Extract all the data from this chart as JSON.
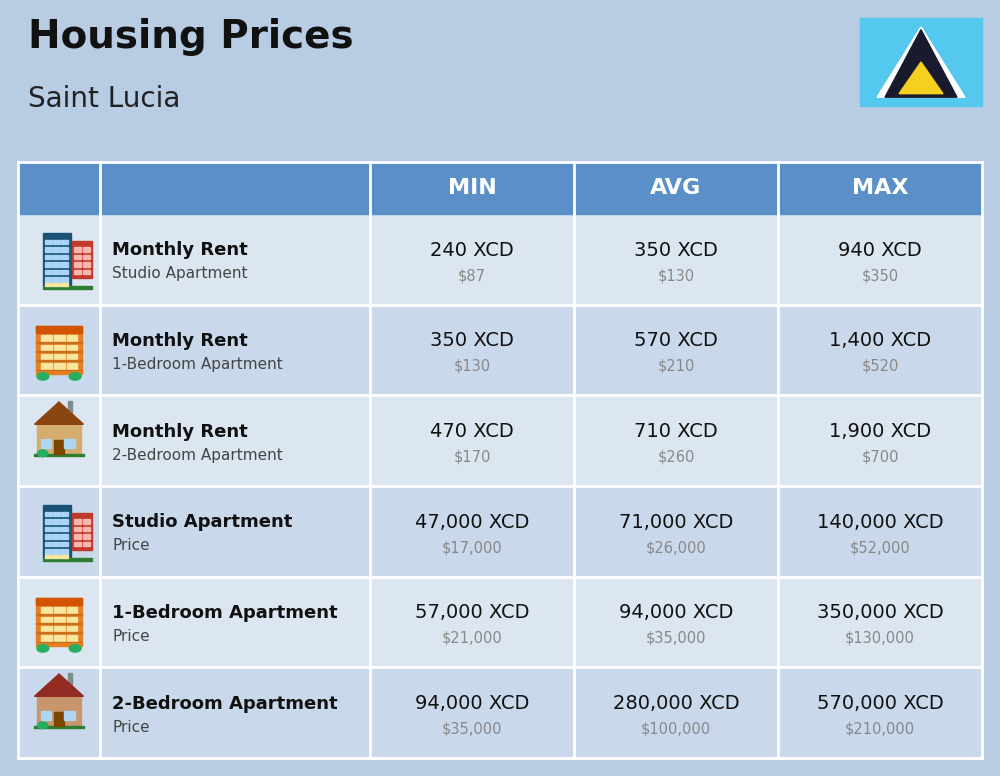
{
  "title": "Housing Prices",
  "subtitle": "Saint Lucia",
  "background_color": "#b8cce4",
  "header_bg_color": "#5b8fc7",
  "header_text_color": "#ffffff",
  "row_bg_odd": "#dce6f1",
  "row_bg_even": "#c9d9eb",
  "col_headers": [
    "MIN",
    "AVG",
    "MAX"
  ],
  "rows": [
    {
      "bold_label": "Monthly Rent",
      "sub_label": "Studio Apartment",
      "min_xcd": "240 XCD",
      "min_usd": "$87",
      "avg_xcd": "350 XCD",
      "avg_usd": "$130",
      "max_xcd": "940 XCD",
      "max_usd": "$350",
      "icon_type": "office_blue"
    },
    {
      "bold_label": "Monthly Rent",
      "sub_label": "1-Bedroom Apartment",
      "min_xcd": "350 XCD",
      "min_usd": "$130",
      "avg_xcd": "570 XCD",
      "avg_usd": "$210",
      "max_xcd": "1,400 XCD",
      "max_usd": "$520",
      "icon_type": "apartment_orange"
    },
    {
      "bold_label": "Monthly Rent",
      "sub_label": "2-Bedroom Apartment",
      "min_xcd": "470 XCD",
      "min_usd": "$170",
      "avg_xcd": "710 XCD",
      "avg_usd": "$260",
      "max_xcd": "1,900 XCD",
      "max_usd": "$700",
      "icon_type": "house_beige"
    },
    {
      "bold_label": "Studio Apartment",
      "sub_label": "Price",
      "min_xcd": "47,000 XCD",
      "min_usd": "$17,000",
      "avg_xcd": "71,000 XCD",
      "avg_usd": "$26,000",
      "max_xcd": "140,000 XCD",
      "max_usd": "$52,000",
      "icon_type": "office_blue"
    },
    {
      "bold_label": "1-Bedroom Apartment",
      "sub_label": "Price",
      "min_xcd": "57,000 XCD",
      "min_usd": "$21,000",
      "avg_xcd": "94,000 XCD",
      "avg_usd": "$35,000",
      "max_xcd": "350,000 XCD",
      "max_usd": "$130,000",
      "icon_type": "apartment_orange"
    },
    {
      "bold_label": "2-Bedroom Apartment",
      "sub_label": "Price",
      "min_xcd": "94,000 XCD",
      "min_usd": "$35,000",
      "avg_xcd": "280,000 XCD",
      "avg_usd": "$100,000",
      "max_xcd": "570,000 XCD",
      "max_usd": "$210,000",
      "icon_type": "house_brown"
    }
  ]
}
